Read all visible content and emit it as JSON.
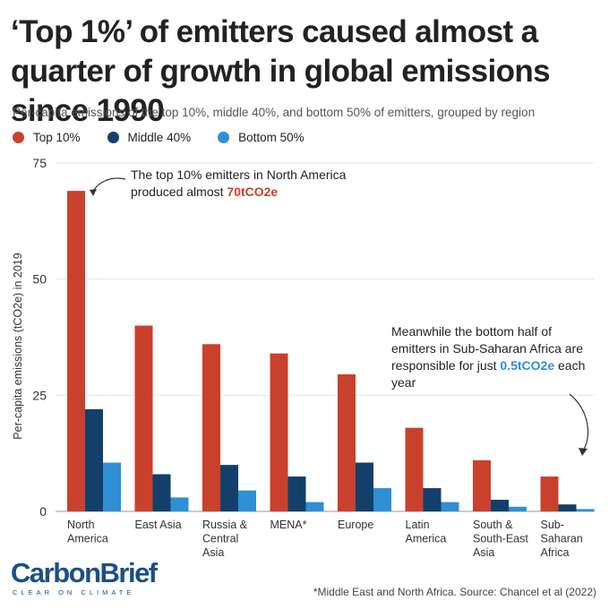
{
  "title": "‘Top 1%’ of emitters caused almost a quarter of growth in global emissions since 1990",
  "subtitle": "Per-capita emissions of the top 10%, middle 40%, and bottom 50% of emitters, grouped by region",
  "annotations": {
    "north_america_text": "The top 10% emitters in North America produced almost",
    "north_america_value": "70tCO2e",
    "ssa_text": "Meanwhile the bottom half of emitters in Sub-Saharan Africa are responsible for just",
    "ssa_value": "0.5tCO2e",
    "ssa_suffix": "each year"
  },
  "logo": {
    "main": "CarbonBrief",
    "tagline": "CLEAR ON CLIMATE"
  },
  "footnote": "*Middle East and North Africa. Source: Chancel et al (2022)",
  "colors": {
    "top10": "#c9412c",
    "middle40": "#12406b",
    "bottom50": "#2f8fd4",
    "grid": "#e6e6e6",
    "axis": "#999999"
  },
  "chart_data": {
    "type": "bar",
    "title": "‘Top 1%’ of emitters caused almost a quarter of growth in global emissions since 1990",
    "ylabel": "Per-capita emissions (tCO2e) in 2019",
    "xlabel": "",
    "ylim": [
      0,
      75
    ],
    "yticks": [
      0,
      25,
      50,
      75
    ],
    "grid": true,
    "legend_position": "top-left",
    "categories": [
      [
        "North",
        "America"
      ],
      [
        "East Asia"
      ],
      [
        "Russia &",
        "Central",
        "Asia"
      ],
      [
        "MENA*"
      ],
      [
        "Europe"
      ],
      [
        "Latin",
        "America"
      ],
      [
        "South &",
        "South-East",
        "Asia"
      ],
      [
        "Sub-",
        "Saharan",
        "Africa"
      ]
    ],
    "series": [
      {
        "name": "Top 10%",
        "color": "#c9412c",
        "values": [
          69,
          40,
          36,
          34,
          29.5,
          18,
          11,
          7.5
        ]
      },
      {
        "name": "Middle 40%",
        "color": "#12406b",
        "values": [
          22,
          8,
          10,
          7.5,
          10.5,
          5,
          2.5,
          1.5
        ]
      },
      {
        "name": "Bottom 50%",
        "color": "#2f8fd4",
        "values": [
          10.5,
          3,
          4.5,
          2,
          5,
          2,
          1,
          0.5
        ]
      }
    ]
  }
}
